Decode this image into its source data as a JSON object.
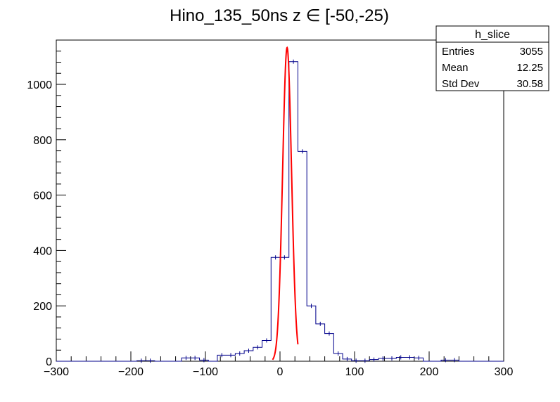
{
  "chart_data": {
    "type": "histogram",
    "title": "Hino_135_50ns z  ∈ [-50,-25)",
    "xlabel": "",
    "ylabel": "",
    "xlim": [
      -300,
      300
    ],
    "ylim": [
      0,
      1160
    ],
    "x_ticks": [
      -300,
      -200,
      -100,
      0,
      100,
      200,
      300
    ],
    "y_ticks": [
      0,
      200,
      400,
      600,
      800,
      1000
    ],
    "bin_width": 12,
    "bins": [
      {
        "x": -180,
        "y": 2
      },
      {
        "x": -120,
        "y": 12
      },
      {
        "x": -108,
        "y": 4
      },
      {
        "x": -72,
        "y": 22
      },
      {
        "x": -60,
        "y": 28
      },
      {
        "x": -48,
        "y": 38
      },
      {
        "x": -36,
        "y": 50
      },
      {
        "x": -24,
        "y": 75
      },
      {
        "x": -12,
        "y": 105
      },
      {
        "x": 0,
        "y": 375
      },
      {
        "x": 12,
        "y": 1082
      },
      {
        "x": 24,
        "y": 758
      },
      {
        "x": 36,
        "y": 200
      },
      {
        "x": 48,
        "y": 135
      },
      {
        "x": 60,
        "y": 100
      },
      {
        "x": 72,
        "y": 28
      },
      {
        "x": 84,
        "y": 8
      },
      {
        "x": 108,
        "y": 2
      },
      {
        "x": 120,
        "y": 6
      },
      {
        "x": 144,
        "y": 10
      },
      {
        "x": 156,
        "y": 14
      },
      {
        "x": 168,
        "y": 14
      },
      {
        "x": 180,
        "y": 12
      },
      {
        "x": 228,
        "y": 4
      }
    ],
    "fit": {
      "type": "gaussian",
      "mean": 9.5,
      "sigma": 6.0,
      "amplitude": 1133,
      "range": [
        -10,
        24
      ],
      "color": "#ff0000"
    },
    "histogram_color": "#00008b",
    "stats": {
      "name": "h_slice",
      "rows": [
        {
          "label": "Entries",
          "value": "3055"
        },
        {
          "label": "Mean",
          "value": "12.25"
        },
        {
          "label": "Std Dev",
          "value": "30.58"
        }
      ]
    }
  }
}
